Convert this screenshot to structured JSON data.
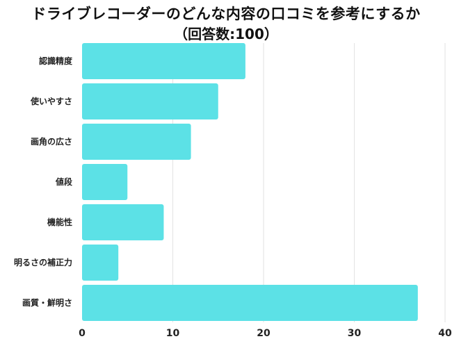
{
  "chart_data": {
    "type": "bar",
    "orientation": "horizontal",
    "title": "ドライブレコーダーのどんな内容の口コミを参考にするか",
    "subtitle": "（回答数:100）",
    "categories": [
      "認識精度",
      "使いやすさ",
      "画角の広さ",
      "値段",
      "機能性",
      "明るさの補正力",
      "画質・鮮明さ"
    ],
    "values": [
      18,
      15,
      12,
      5,
      9,
      4,
      37
    ],
    "xlim": [
      0,
      40
    ],
    "xticks": [
      "0",
      "10",
      "20",
      "30",
      "40"
    ],
    "xlabel": "",
    "ylabel": "",
    "grid": true,
    "bar_color": "#5ce1e6"
  }
}
